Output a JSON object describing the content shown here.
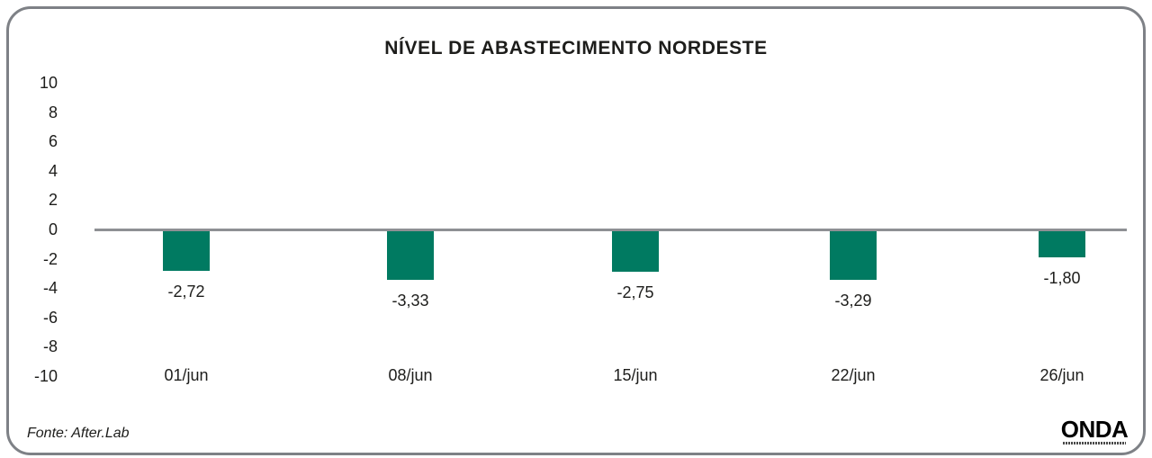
{
  "header": {
    "title": "NÍVEL DE ABASTECIMENTO NORDESTE"
  },
  "footer": {
    "source": "Fonte: After.Lab",
    "brand": "ONDA"
  },
  "chart_data": {
    "type": "bar",
    "title": "NÍVEL DE ABASTECIMENTO NORDESTE",
    "categories": [
      "01/jun",
      "08/jun",
      "15/jun",
      "22/jun",
      "26/jun"
    ],
    "values": [
      -2.72,
      -3.33,
      -2.75,
      -3.29,
      -1.8
    ],
    "value_labels": [
      "-2,72",
      "-3,33",
      "-2,75",
      "-3,29",
      "-1,80"
    ],
    "y_ticks": [
      10,
      8,
      6,
      4,
      2,
      0,
      -2,
      -4,
      -6,
      -8,
      -10
    ],
    "ylim": [
      -10,
      10
    ],
    "xlabel": "",
    "ylabel": "",
    "grid": false,
    "legend": false,
    "bar_color": "#007a61",
    "zero_line_color": "#8e9094",
    "text_color": "#1d1d1b"
  }
}
